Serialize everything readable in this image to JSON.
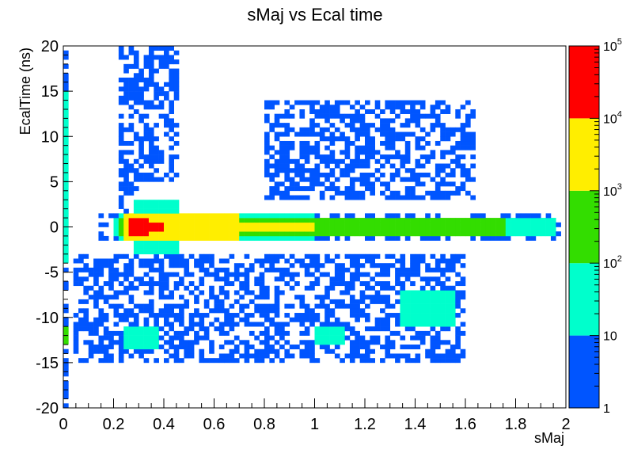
{
  "chart_data": {
    "type": "heatmap",
    "title": "sMaj vs Ecal time",
    "xlabel": "sMaj",
    "ylabel": "EcalTime (ns)",
    "xlim": [
      0,
      2
    ],
    "ylim": [
      -20,
      20
    ],
    "x_ticks": [
      "0",
      "0.2",
      "0.4",
      "0.6",
      "0.8",
      "1",
      "1.2",
      "1.4",
      "1.6",
      "1.8",
      "2"
    ],
    "y_ticks": [
      "-20",
      "-15",
      "-10",
      "-5",
      "0",
      "5",
      "10",
      "15",
      "20"
    ],
    "colorbar": {
      "scale": "log",
      "range": [
        1,
        100000
      ],
      "labels": [
        {
          "base": "1",
          "exp": ""
        },
        {
          "base": "10",
          "exp": ""
        },
        {
          "base": "10",
          "exp": "2"
        },
        {
          "base": "10",
          "exp": "3"
        },
        {
          "base": "10",
          "exp": "4"
        },
        {
          "base": "10",
          "exp": "5"
        }
      ],
      "bands": [
        "#0055ff",
        "#00ffcc",
        "#33dd00",
        "#ffee00",
        "#ff0000"
      ]
    },
    "regions": [
      {
        "x": [
          0.0,
          0.02
        ],
        "y": [
          -20,
          20
        ],
        "level": 1
      },
      {
        "x": [
          0.0,
          0.02
        ],
        "y": [
          -4,
          15
        ],
        "level": 2
      },
      {
        "x": [
          0.0,
          0.02
        ],
        "y": [
          -13,
          -11
        ],
        "level": 3
      },
      {
        "x": [
          0.22,
          0.3
        ],
        "y": [
          0.5,
          20
        ],
        "level": 1
      },
      {
        "x": [
          0.3,
          0.45
        ],
        "y": [
          5,
          20
        ],
        "level": 1
      },
      {
        "x": [
          0.05,
          1.6
        ],
        "y": [
          -15,
          -3
        ],
        "level": 1
      },
      {
        "x": [
          0.8,
          1.65
        ],
        "y": [
          3,
          14
        ],
        "level": 1
      },
      {
        "x": [
          0.15,
          2.0
        ],
        "y": [
          -1.5,
          1.5
        ],
        "level": 1
      },
      {
        "x": [
          0.2,
          1.95
        ],
        "y": [
          -1.2,
          1.2
        ],
        "level": 2
      },
      {
        "x": [
          0.22,
          1.0
        ],
        "y": [
          -1.7,
          1.7
        ],
        "level": 2
      },
      {
        "x": [
          0.28,
          0.45
        ],
        "y": [
          -2.8,
          3.2
        ],
        "level": 2
      },
      {
        "x": [
          0.22,
          1.75
        ],
        "y": [
          -0.8,
          0.8
        ],
        "level": 3
      },
      {
        "x": [
          0.24,
          0.9
        ],
        "y": [
          -1.2,
          1.2
        ],
        "level": 3
      },
      {
        "x": [
          0.25,
          0.7
        ],
        "y": [
          -1.3,
          1.3
        ],
        "level": 4
      },
      {
        "x": [
          0.7,
          1.0
        ],
        "y": [
          -0.6,
          0.6
        ],
        "level": 4
      },
      {
        "x": [
          0.26,
          0.34
        ],
        "y": [
          -1.0,
          1.0
        ],
        "level": 5
      },
      {
        "x": [
          0.34,
          0.4
        ],
        "y": [
          -0.4,
          0.4
        ],
        "level": 5
      },
      {
        "x": [
          0.25,
          0.37
        ],
        "y": [
          -13.5,
          -11
        ],
        "level": 2
      },
      {
        "x": [
          1.0,
          1.12
        ],
        "y": [
          -13,
          -11
        ],
        "level": 2
      },
      {
        "x": [
          1.35,
          1.55
        ],
        "y": [
          -11,
          -7
        ],
        "level": 2
      }
    ],
    "grid": false,
    "legend": "none"
  }
}
